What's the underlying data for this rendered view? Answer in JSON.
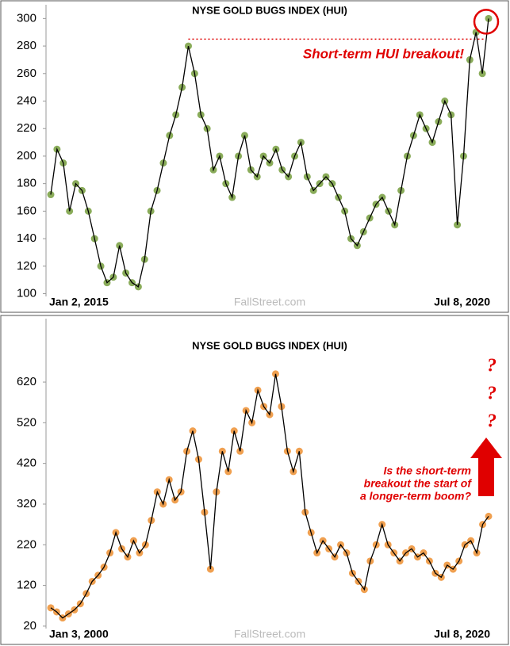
{
  "chart_data": [
    {
      "type": "line",
      "title": "NYSE GOLD BUGS INDEX (HUI)",
      "watermark": "FallStreet.com",
      "categories": [
        "Jan 2, 2015",
        null,
        null,
        null,
        null,
        null,
        null,
        null,
        null,
        null,
        null,
        null,
        null,
        null,
        null,
        null,
        null,
        null,
        null,
        null,
        null,
        null,
        null,
        null,
        null,
        null,
        null,
        null,
        null,
        null,
        null,
        null,
        null,
        null,
        null,
        null,
        null,
        null,
        null,
        null,
        null,
        null,
        null,
        null,
        null,
        null,
        null,
        null,
        null,
        null,
        null,
        null,
        null,
        null,
        null,
        null,
        null,
        null,
        null,
        null,
        null,
        null,
        null,
        null,
        null,
        null,
        null,
        null,
        null,
        null,
        "Jul 8, 2020"
      ],
      "values": [
        172,
        205,
        195,
        160,
        180,
        175,
        160,
        140,
        120,
        108,
        112,
        135,
        115,
        108,
        105,
        125,
        160,
        175,
        195,
        215,
        230,
        250,
        280,
        260,
        230,
        220,
        190,
        200,
        180,
        170,
        200,
        215,
        190,
        185,
        200,
        195,
        205,
        190,
        185,
        200,
        210,
        185,
        175,
        180,
        185,
        180,
        170,
        160,
        140,
        135,
        145,
        155,
        165,
        170,
        160,
        150,
        175,
        200,
        215,
        230,
        220,
        210,
        225,
        240,
        230,
        150,
        200,
        270,
        290,
        260,
        300
      ],
      "color": "#8aac5a",
      "line_color": "#000000",
      "ylim": [
        98,
        310
      ],
      "yticks": [
        100,
        120,
        140,
        160,
        180,
        200,
        220,
        240,
        260,
        280,
        300
      ],
      "annotation": "Short-term HUI breakout!",
      "breakout_level": 285,
      "annotation_color": "#e00000"
    },
    {
      "type": "line",
      "title": "NYSE GOLD BUGS INDEX (HUI)",
      "watermark": "FallStreet.com",
      "categories": [
        "Jan 3, 2000",
        null,
        null,
        null,
        null,
        null,
        null,
        null,
        null,
        null,
        null,
        null,
        null,
        null,
        null,
        null,
        null,
        null,
        null,
        null,
        null,
        null,
        null,
        null,
        null,
        null,
        null,
        null,
        null,
        null,
        null,
        null,
        null,
        null,
        null,
        null,
        null,
        null,
        null,
        null,
        null,
        null,
        null,
        null,
        null,
        null,
        null,
        null,
        null,
        null,
        null,
        null,
        null,
        null,
        null,
        null,
        null,
        null,
        null,
        null,
        null,
        null,
        null,
        null,
        null,
        null,
        null,
        null,
        null,
        null,
        null,
        null,
        null,
        null,
        "Jul 8, 2020"
      ],
      "values": [
        65,
        55,
        40,
        50,
        60,
        75,
        100,
        130,
        145,
        165,
        200,
        250,
        210,
        190,
        230,
        200,
        220,
        280,
        350,
        320,
        380,
        330,
        350,
        450,
        500,
        430,
        300,
        160,
        350,
        450,
        400,
        500,
        450,
        550,
        520,
        600,
        560,
        540,
        640,
        560,
        450,
        400,
        450,
        300,
        250,
        200,
        230,
        210,
        190,
        220,
        200,
        150,
        130,
        110,
        180,
        220,
        270,
        220,
        200,
        180,
        200,
        210,
        190,
        200,
        180,
        150,
        140,
        170,
        160,
        180,
        220,
        230,
        200,
        270,
        290
      ],
      "color": "#f0a050",
      "line_color": "#000000",
      "ylim": [
        14,
        776
      ],
      "yticks": [
        20,
        120,
        220,
        320,
        420,
        520,
        620
      ],
      "annotation_lines": [
        "Is the short-term",
        "breakout the start of",
        "a longer-term boom?"
      ],
      "question_marks": [
        "?",
        "?",
        "?"
      ],
      "annotation_color": "#e00000"
    }
  ]
}
